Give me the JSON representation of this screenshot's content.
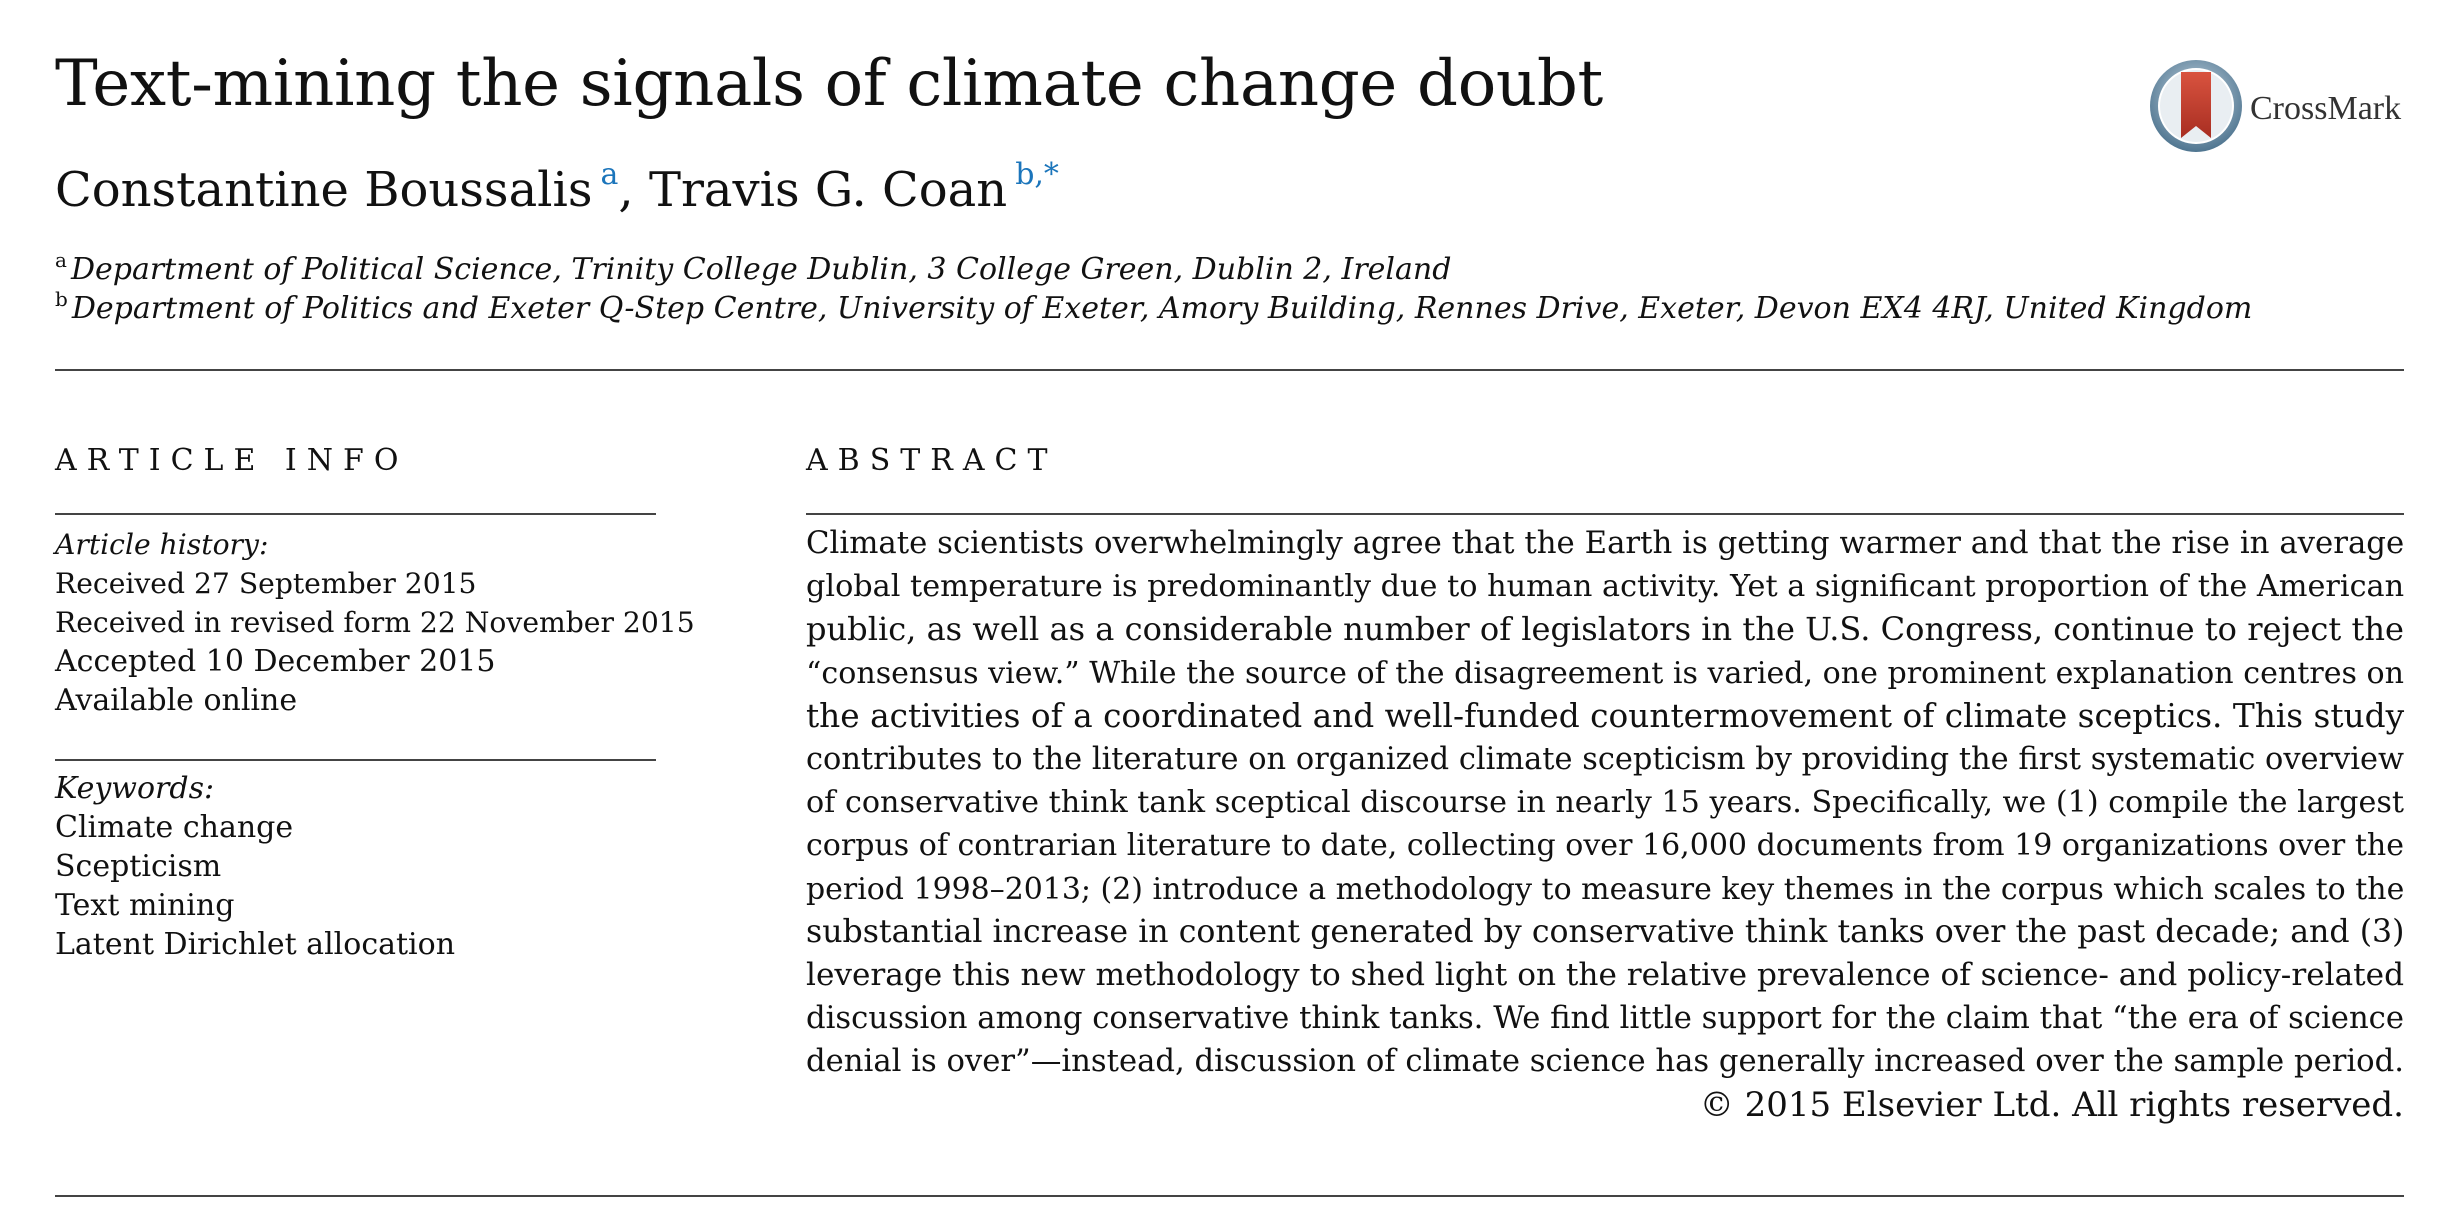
{
  "article": {
    "title": "Text-mining the signals of climate change doubt",
    "crossmark_label": "CrossMark",
    "authors": [
      {
        "name": "Constantine Boussalis",
        "marks": "a"
      },
      {
        "name": "Travis G. Coan",
        "marks": "b,*"
      }
    ],
    "author_separator": ",",
    "affiliations": [
      {
        "mark": "a",
        "text": "Department of Political Science, Trinity College Dublin, 3 College Green, Dublin 2, Ireland"
      },
      {
        "mark": "b",
        "text": "Department of Politics and Exeter Q-Step Centre, University of Exeter, Amory Building, Rennes Drive, Exeter, Devon EX4 4RJ, United Kingdom"
      }
    ]
  },
  "article_info": {
    "heading": "ARTICLE INFO",
    "history_heading": "Article history:",
    "history": [
      "Received 27 September 2015",
      "Received in revised form 22 November 2015",
      "Accepted 10 December 2015",
      "Available online"
    ],
    "keywords_heading": "Keywords:",
    "keywords": [
      "Climate change",
      "Scepticism",
      "Text mining",
      "Latent Dirichlet allocation"
    ]
  },
  "abstract": {
    "heading": "ABSTRACT",
    "lines": [
      "Climate scientists overwhelmingly agree that the Earth is getting warmer and that the rise in average",
      "global temperature is predominantly due to human activity. Yet a significant proportion of the American",
      "public, as well as a considerable number of legislators in the U.S. Congress, continue to reject the",
      "“consensus view.” While the source of the disagreement is varied, one prominent explanation centres on",
      "the activities of a coordinated and well-funded countermovement of climate sceptics. This study",
      "contributes to the literature on organized climate scepticism by providing the first systematic overview",
      "of conservative think tank sceptical discourse in nearly 15 years. Specifically, we (1) compile the largest",
      "corpus of contrarian literature to date, collecting over 16,000 documents from 19 organizations over the",
      "period 1998–2013; (2) introduce a methodology to measure key themes in the corpus which scales to the",
      "substantial increase in content generated by conservative think tanks over the past decade; and (3)",
      "leverage this new methodology to shed light on the relative prevalence of science- and policy-related",
      "discussion among conservative think tanks. We find little support for the claim that “the era of science",
      "denial is over”—instead, discussion of climate science has generally increased over the sample period."
    ],
    "copyright": "© 2015 Elsevier Ltd. All rights reserved."
  },
  "colors": {
    "accent": "#1b75bb",
    "crossmark_red": "#c8402f",
    "crossmark_ring": "#6d90a8"
  }
}
